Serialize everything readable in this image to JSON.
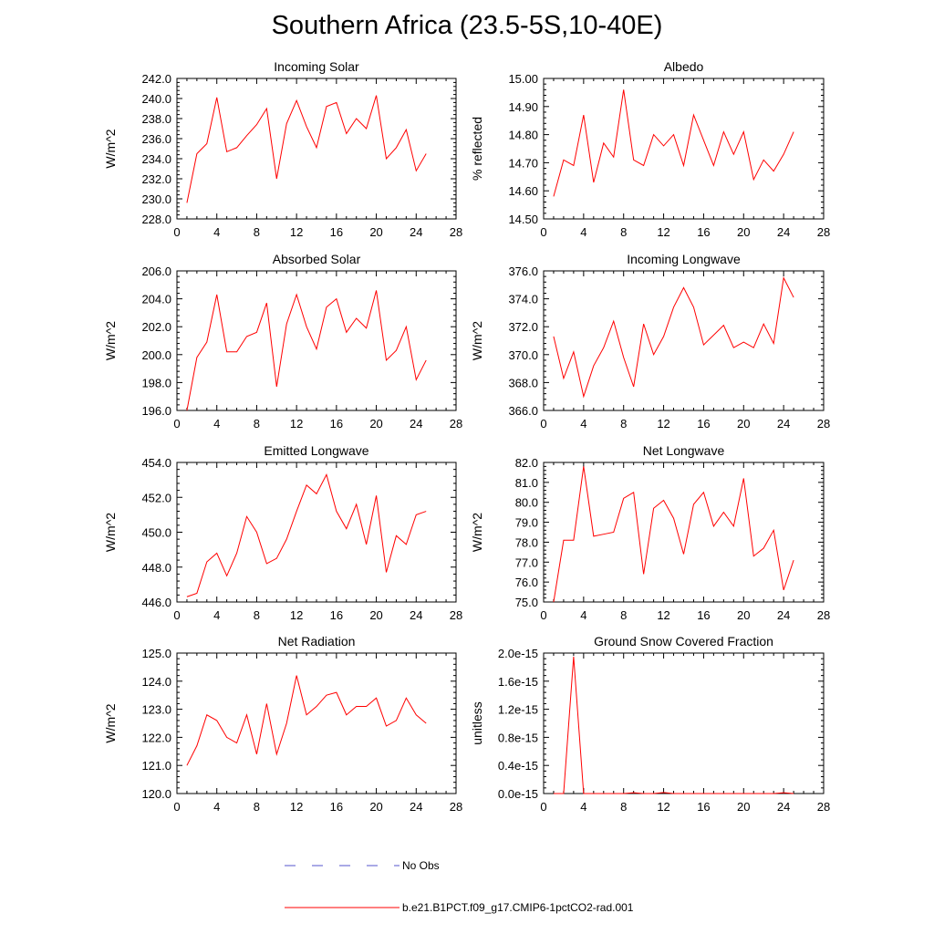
{
  "title": "Southern Africa (23.5-5S,10-40E)",
  "colors": {
    "model_line": "#ff0000",
    "obs_line": "#5555cc",
    "axis": "#000000"
  },
  "legend": {
    "items": [
      {
        "label": "No Obs",
        "style": "dashed",
        "color": "#5555cc"
      },
      {
        "label": "b.e21.B1PCT.f09_g17.CMIP6-1pctCO2-rad.001",
        "style": "solid",
        "color": "#ff0000"
      }
    ]
  },
  "chart_data": [
    {
      "type": "line",
      "title": "Incoming Solar",
      "xlabel": "",
      "ylabel": "W/m^2",
      "xlim": [
        0,
        28
      ],
      "xticks": [
        0,
        4,
        8,
        12,
        16,
        20,
        24,
        28
      ],
      "ylim": [
        228,
        242
      ],
      "yticks": [
        228,
        230,
        232,
        234,
        236,
        238,
        240,
        242
      ],
      "ytick_decimals": 1,
      "x": [
        1,
        2,
        3,
        4,
        5,
        6,
        7,
        8,
        9,
        10,
        11,
        12,
        13,
        14,
        15,
        16,
        17,
        18,
        19,
        20,
        21,
        22,
        23,
        24,
        25
      ],
      "series": [
        {
          "values": [
            229.6,
            234.5,
            235.5,
            240.1,
            234.7,
            235.1,
            236.3,
            237.4,
            239.0,
            232.0,
            237.5,
            239.8,
            237.2,
            235.1,
            239.2,
            239.6,
            236.5,
            238.0,
            237.0,
            240.3,
            234.0,
            235.1,
            236.9,
            232.8,
            234.5
          ]
        }
      ]
    },
    {
      "type": "line",
      "title": "Albedo",
      "xlabel": "",
      "ylabel": "% reflected",
      "xlim": [
        0,
        28
      ],
      "xticks": [
        0,
        4,
        8,
        12,
        16,
        20,
        24,
        28
      ],
      "ylim": [
        14.5,
        15.0
      ],
      "yticks": [
        14.5,
        14.6,
        14.7,
        14.8,
        14.9,
        15.0
      ],
      "ytick_decimals": 2,
      "x": [
        1,
        2,
        3,
        4,
        5,
        6,
        7,
        8,
        9,
        10,
        11,
        12,
        13,
        14,
        15,
        16,
        17,
        18,
        19,
        20,
        21,
        22,
        23,
        24,
        25
      ],
      "series": [
        {
          "values": [
            14.58,
            14.71,
            14.69,
            14.87,
            14.63,
            14.77,
            14.72,
            14.96,
            14.71,
            14.69,
            14.8,
            14.76,
            14.8,
            14.69,
            14.87,
            14.78,
            14.69,
            14.81,
            14.73,
            14.81,
            14.64,
            14.71,
            14.67,
            14.73,
            14.81
          ]
        }
      ]
    },
    {
      "type": "line",
      "title": "Absorbed Solar",
      "xlabel": "",
      "ylabel": "W/m^2",
      "xlim": [
        0,
        28
      ],
      "xticks": [
        0,
        4,
        8,
        12,
        16,
        20,
        24,
        28
      ],
      "ylim": [
        196,
        206
      ],
      "yticks": [
        196,
        198,
        200,
        202,
        204,
        206
      ],
      "ytick_decimals": 1,
      "x": [
        1,
        2,
        3,
        4,
        5,
        6,
        7,
        8,
        9,
        10,
        11,
        12,
        13,
        14,
        15,
        16,
        17,
        18,
        19,
        20,
        21,
        22,
        23,
        24,
        25
      ],
      "series": [
        {
          "values": [
            196.0,
            199.8,
            200.9,
            204.3,
            200.2,
            200.2,
            201.3,
            201.6,
            203.7,
            197.7,
            202.2,
            204.3,
            202.0,
            200.4,
            203.4,
            204.0,
            201.6,
            202.6,
            201.9,
            204.6,
            199.6,
            200.3,
            202.0,
            198.2,
            199.6
          ]
        }
      ]
    },
    {
      "type": "line",
      "title": "Incoming Longwave",
      "xlabel": "",
      "ylabel": "W/m^2",
      "xlim": [
        0,
        28
      ],
      "xticks": [
        0,
        4,
        8,
        12,
        16,
        20,
        24,
        28
      ],
      "ylim": [
        366,
        376
      ],
      "yticks": [
        366,
        368,
        370,
        372,
        374,
        376
      ],
      "ytick_decimals": 1,
      "x": [
        1,
        2,
        3,
        4,
        5,
        6,
        7,
        8,
        9,
        10,
        11,
        12,
        13,
        14,
        15,
        16,
        17,
        18,
        19,
        20,
        21,
        22,
        23,
        24,
        25
      ],
      "series": [
        {
          "values": [
            371.3,
            368.3,
            370.2,
            367.0,
            369.2,
            370.5,
            372.4,
            369.8,
            367.7,
            372.2,
            370.0,
            371.3,
            373.4,
            374.8,
            373.4,
            370.7,
            371.4,
            372.1,
            370.5,
            370.9,
            370.5,
            372.2,
            370.8,
            375.5,
            374.1
          ]
        }
      ]
    },
    {
      "type": "line",
      "title": "Emitted Longwave",
      "xlabel": "",
      "ylabel": "W/m^2",
      "xlim": [
        0,
        28
      ],
      "xticks": [
        0,
        4,
        8,
        12,
        16,
        20,
        24,
        28
      ],
      "ylim": [
        446,
        454
      ],
      "yticks": [
        446,
        448,
        450,
        452,
        454
      ],
      "ytick_decimals": 1,
      "x": [
        1,
        2,
        3,
        4,
        5,
        6,
        7,
        8,
        9,
        10,
        11,
        12,
        13,
        14,
        15,
        16,
        17,
        18,
        19,
        20,
        21,
        22,
        23,
        24,
        25
      ],
      "series": [
        {
          "values": [
            446.3,
            446.5,
            448.3,
            448.8,
            447.5,
            448.8,
            450.9,
            450.0,
            448.2,
            448.5,
            449.6,
            451.2,
            452.7,
            452.2,
            453.3,
            451.2,
            450.2,
            451.6,
            449.3,
            452.1,
            447.7,
            449.8,
            449.3,
            451.0,
            451.2
          ]
        }
      ]
    },
    {
      "type": "line",
      "title": "Net Longwave",
      "xlabel": "",
      "ylabel": "W/m^2",
      "xlim": [
        0,
        28
      ],
      "xticks": [
        0,
        4,
        8,
        12,
        16,
        20,
        24,
        28
      ],
      "ylim": [
        75,
        82
      ],
      "yticks": [
        75,
        76,
        77,
        78,
        79,
        80,
        81,
        82
      ],
      "ytick_decimals": 1,
      "x": [
        1,
        2,
        3,
        4,
        5,
        6,
        7,
        8,
        9,
        10,
        11,
        12,
        13,
        14,
        15,
        16,
        17,
        18,
        19,
        20,
        21,
        22,
        23,
        24,
        25
      ],
      "series": [
        {
          "values": [
            75.0,
            78.1,
            78.1,
            81.8,
            78.3,
            78.4,
            78.5,
            80.2,
            80.5,
            76.4,
            79.7,
            80.1,
            79.2,
            77.4,
            79.9,
            80.5,
            78.8,
            79.5,
            78.8,
            81.2,
            77.3,
            77.7,
            78.6,
            75.6,
            77.1
          ]
        }
      ]
    },
    {
      "type": "line",
      "title": "Net Radiation",
      "xlabel": "",
      "ylabel": "W/m^2",
      "xlim": [
        0,
        28
      ],
      "xticks": [
        0,
        4,
        8,
        12,
        16,
        20,
        24,
        28
      ],
      "ylim": [
        120,
        125
      ],
      "yticks": [
        120,
        121,
        122,
        123,
        124,
        125
      ],
      "ytick_decimals": 1,
      "x": [
        1,
        2,
        3,
        4,
        5,
        6,
        7,
        8,
        9,
        10,
        11,
        12,
        13,
        14,
        15,
        16,
        17,
        18,
        19,
        20,
        21,
        22,
        23,
        24,
        25
      ],
      "series": [
        {
          "values": [
            121.0,
            121.7,
            122.8,
            122.6,
            122.0,
            121.8,
            122.8,
            121.4,
            123.2,
            121.4,
            122.5,
            124.2,
            122.8,
            123.1,
            123.5,
            123.6,
            122.8,
            123.1,
            123.1,
            123.4,
            122.4,
            122.6,
            123.4,
            122.8,
            122.5
          ]
        }
      ]
    },
    {
      "type": "line",
      "title": "Ground Snow Covered Fraction",
      "xlabel": "",
      "ylabel": "unitless",
      "xlim": [
        0,
        28
      ],
      "xticks": [
        0,
        4,
        8,
        12,
        16,
        20,
        24,
        28
      ],
      "ylim": [
        0,
        2e-15
      ],
      "yticks": [
        0,
        4e-16,
        8e-16,
        1.2e-15,
        1.6e-15,
        2e-15
      ],
      "ytick_labels": [
        "0.0e-15",
        "0.4e-15",
        "0.8e-15",
        "1.2e-15",
        "1.6e-15",
        "2.0e-15"
      ],
      "x": [
        1,
        2,
        3,
        4,
        5,
        6,
        7,
        8,
        9,
        10,
        11,
        12,
        13,
        14,
        15,
        16,
        17,
        18,
        19,
        20,
        21,
        22,
        23,
        24,
        25
      ],
      "series": [
        {
          "values": [
            0,
            0,
            1.95e-15,
            0,
            0,
            0,
            0,
            0,
            1.2e-17,
            0,
            0,
            1.5e-17,
            0,
            0,
            0,
            0,
            0,
            0,
            0,
            0,
            0,
            0,
            0,
            1.2e-17,
            0
          ]
        }
      ]
    }
  ]
}
